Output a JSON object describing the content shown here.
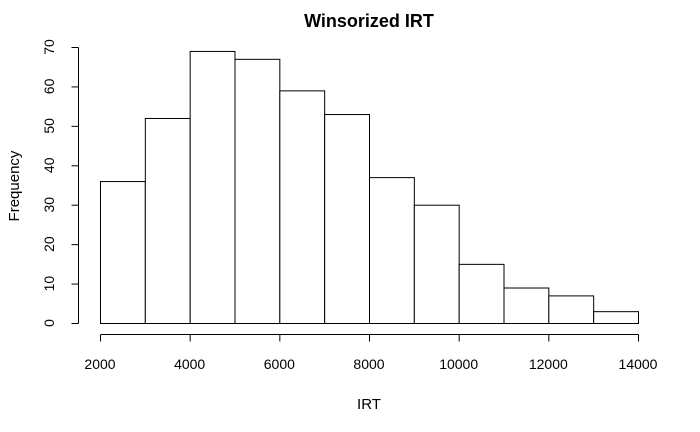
{
  "chart_data": {
    "type": "bar",
    "title": "Winsorized IRT",
    "xlabel": "IRT",
    "ylabel": "Frequency",
    "bin_edges": [
      2000,
      3000,
      4000,
      5000,
      6000,
      7000,
      8000,
      9000,
      10000,
      11000,
      12000,
      13000,
      14000
    ],
    "values": [
      36,
      52,
      69,
      67,
      59,
      53,
      37,
      30,
      15,
      9,
      7,
      3
    ],
    "xlim": [
      2000,
      14000
    ],
    "ylim": [
      0,
      70
    ],
    "x_ticks": [
      2000,
      4000,
      6000,
      8000,
      10000,
      12000,
      14000
    ],
    "y_ticks": [
      0,
      10,
      20,
      30,
      40,
      50,
      60,
      70
    ],
    "grid": false
  }
}
